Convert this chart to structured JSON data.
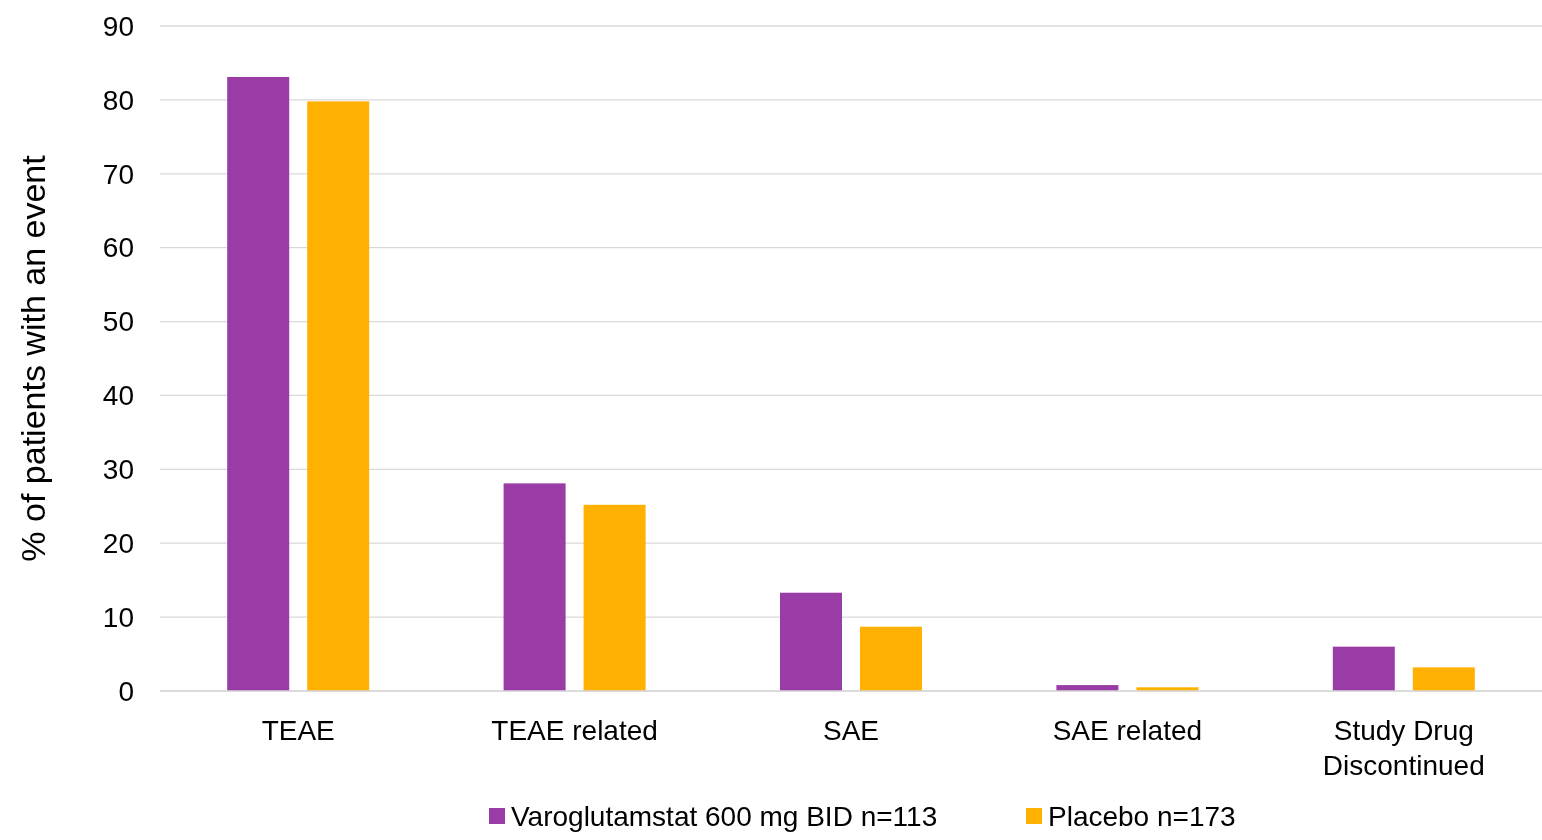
{
  "chart_data": {
    "type": "bar",
    "ylabel": "% of patients with an event",
    "categories": [
      "TEAE",
      "TEAE related",
      "SAE",
      "SAE related",
      "Study Drug Discontinued"
    ],
    "series": [
      {
        "name": "Varoglutamstat 600 mg BID n=113",
        "color": "#993ca6",
        "values": [
          83.1,
          28.1,
          13.3,
          0.8,
          6.0
        ]
      },
      {
        "name": "Placebo n=173",
        "color": "#ffb000",
        "values": [
          79.8,
          25.2,
          8.7,
          0.5,
          3.2
        ]
      }
    ],
    "ylim": [
      0,
      90
    ],
    "yticks": [
      0,
      10,
      20,
      30,
      40,
      50,
      60,
      70,
      80,
      90
    ],
    "grid": "y",
    "legend": "bottom"
  }
}
